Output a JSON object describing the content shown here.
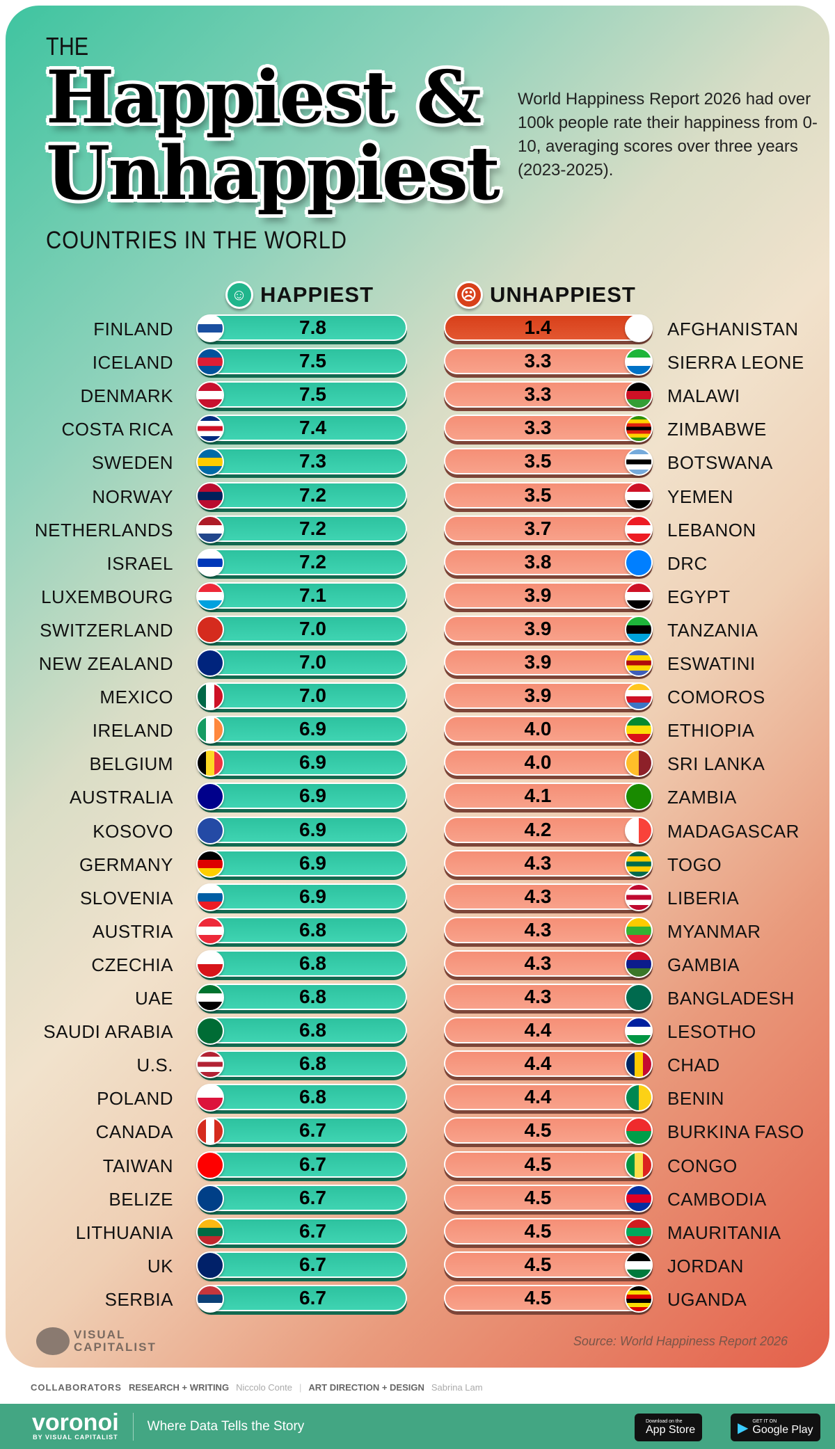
{
  "title": {
    "pre": "THE",
    "line1": "Happiest &",
    "line2": "Unhappiest",
    "subtitle": "COUNTRIES IN THE WORLD"
  },
  "description": "World Happiness Report 2026 had over 100k people rate their happiness from 0-10, averaging scores over three years (2023-2025).",
  "colors": {
    "happy": "#2ec4a0",
    "unhappy": "#f5937a",
    "unhappy_top": "#d8401a"
  },
  "chart_data": {
    "type": "table",
    "columns": [
      {
        "label": "HAPPIEST",
        "icon": "smiley-face-icon"
      },
      {
        "label": "UNHAPPIEST",
        "icon": "frown-face-icon"
      }
    ],
    "happiest": [
      {
        "country": "FINLAND",
        "score": "7.8",
        "flag": [
          "#ffffff",
          "#1a4fa0",
          "#ffffff"
        ],
        "dir": "h"
      },
      {
        "country": "ICELAND",
        "score": "7.5",
        "flag": [
          "#02529c",
          "#dc1e35",
          "#02529c"
        ],
        "dir": "h"
      },
      {
        "country": "DENMARK",
        "score": "7.5",
        "flag": [
          "#c8102e",
          "#ffffff",
          "#c8102e"
        ],
        "dir": "h"
      },
      {
        "country": "COSTA RICA",
        "score": "7.4",
        "flag": [
          "#002b7f",
          "#ffffff",
          "#ce1126",
          "#ffffff",
          "#002b7f"
        ],
        "dir": "h"
      },
      {
        "country": "SWEDEN",
        "score": "7.3",
        "flag": [
          "#006aa7",
          "#fecc00",
          "#006aa7"
        ],
        "dir": "h"
      },
      {
        "country": "NORWAY",
        "score": "7.2",
        "flag": [
          "#ba0c2f",
          "#00205b",
          "#ba0c2f"
        ],
        "dir": "h"
      },
      {
        "country": "NETHERLANDS",
        "score": "7.2",
        "flag": [
          "#ae1c28",
          "#ffffff",
          "#21468b"
        ],
        "dir": "h"
      },
      {
        "country": "ISRAEL",
        "score": "7.2",
        "flag": [
          "#ffffff",
          "#0038b8",
          "#ffffff"
        ],
        "dir": "h"
      },
      {
        "country": "LUXEMBOURG",
        "score": "7.1",
        "flag": [
          "#ed2939",
          "#ffffff",
          "#00a1de"
        ],
        "dir": "h"
      },
      {
        "country": "SWITZERLAND",
        "score": "7.0",
        "flag": [
          "#d52b1e"
        ],
        "dir": "h"
      },
      {
        "country": "NEW ZEALAND",
        "score": "7.0",
        "flag": [
          "#00247d"
        ],
        "dir": "h"
      },
      {
        "country": "MEXICO",
        "score": "7.0",
        "flag": [
          "#006847",
          "#ffffff",
          "#ce1126"
        ],
        "dir": "v"
      },
      {
        "country": "IRELAND",
        "score": "6.9",
        "flag": [
          "#169b62",
          "#ffffff",
          "#ff883e"
        ],
        "dir": "v"
      },
      {
        "country": "BELGIUM",
        "score": "6.9",
        "flag": [
          "#000000",
          "#fdda24",
          "#ef3340"
        ],
        "dir": "v"
      },
      {
        "country": "AUSTRALIA",
        "score": "6.9",
        "flag": [
          "#00008b"
        ],
        "dir": "h"
      },
      {
        "country": "KOSOVO",
        "score": "6.9",
        "flag": [
          "#244aa5"
        ],
        "dir": "h"
      },
      {
        "country": "GERMANY",
        "score": "6.9",
        "flag": [
          "#000000",
          "#dd0000",
          "#ffce00"
        ],
        "dir": "h"
      },
      {
        "country": "SLOVENIA",
        "score": "6.9",
        "flag": [
          "#ffffff",
          "#005da4",
          "#ed1c24"
        ],
        "dir": "h"
      },
      {
        "country": "AUSTRIA",
        "score": "6.8",
        "flag": [
          "#ed2939",
          "#ffffff",
          "#ed2939"
        ],
        "dir": "h"
      },
      {
        "country": "CZECHIA",
        "score": "6.8",
        "flag": [
          "#ffffff",
          "#d7141a"
        ],
        "dir": "h"
      },
      {
        "country": "UAE",
        "score": "6.8",
        "flag": [
          "#00732f",
          "#ffffff",
          "#000000"
        ],
        "dir": "h"
      },
      {
        "country": "SAUDI ARABIA",
        "score": "6.8",
        "flag": [
          "#006c35"
        ],
        "dir": "h"
      },
      {
        "country": "U.S.",
        "score": "6.8",
        "flag": [
          "#b22234",
          "#ffffff",
          "#b22234",
          "#ffffff",
          "#b22234"
        ],
        "dir": "h"
      },
      {
        "country": "POLAND",
        "score": "6.8",
        "flag": [
          "#ffffff",
          "#dc143c"
        ],
        "dir": "h"
      },
      {
        "country": "CANADA",
        "score": "6.7",
        "flag": [
          "#d52b1e",
          "#ffffff",
          "#d52b1e"
        ],
        "dir": "v"
      },
      {
        "country": "TAIWAN",
        "score": "6.7",
        "flag": [
          "#fe0000"
        ],
        "dir": "h"
      },
      {
        "country": "BELIZE",
        "score": "6.7",
        "flag": [
          "#003f87"
        ],
        "dir": "h"
      },
      {
        "country": "LITHUANIA",
        "score": "6.7",
        "flag": [
          "#fdb913",
          "#006a44",
          "#c1272d"
        ],
        "dir": "h"
      },
      {
        "country": "UK",
        "score": "6.7",
        "flag": [
          "#012169"
        ],
        "dir": "h"
      },
      {
        "country": "SERBIA",
        "score": "6.7",
        "flag": [
          "#c6363c",
          "#0c4076",
          "#ffffff"
        ],
        "dir": "h"
      }
    ],
    "unhappiest": [
      {
        "country": "AFGHANISTAN",
        "score": "1.4",
        "flag": [
          "#ffffff"
        ],
        "dir": "h"
      },
      {
        "country": "SIERRA LEONE",
        "score": "3.3",
        "flag": [
          "#1eb53a",
          "#ffffff",
          "#0072c6"
        ],
        "dir": "h"
      },
      {
        "country": "MALAWI",
        "score": "3.3",
        "flag": [
          "#000000",
          "#ce1126",
          "#339e35"
        ],
        "dir": "h"
      },
      {
        "country": "ZIMBABWE",
        "score": "3.3",
        "flag": [
          "#319208",
          "#ffd200",
          "#de2010",
          "#000000",
          "#de2010",
          "#ffd200",
          "#319208"
        ],
        "dir": "h"
      },
      {
        "country": "BOTSWANA",
        "score": "3.5",
        "flag": [
          "#75aadb",
          "#ffffff",
          "#000000",
          "#ffffff",
          "#75aadb"
        ],
        "dir": "h"
      },
      {
        "country": "YEMEN",
        "score": "3.5",
        "flag": [
          "#ce1126",
          "#ffffff",
          "#000000"
        ],
        "dir": "h"
      },
      {
        "country": "LEBANON",
        "score": "3.7",
        "flag": [
          "#ed1c24",
          "#ffffff",
          "#ed1c24"
        ],
        "dir": "h"
      },
      {
        "country": "DRC",
        "score": "3.8",
        "flag": [
          "#007fff"
        ],
        "dir": "h"
      },
      {
        "country": "EGYPT",
        "score": "3.9",
        "flag": [
          "#ce1126",
          "#ffffff",
          "#000000"
        ],
        "dir": "h"
      },
      {
        "country": "TANZANIA",
        "score": "3.9",
        "flag": [
          "#1eb53a",
          "#000000",
          "#00a3dd"
        ],
        "dir": "h"
      },
      {
        "country": "ESWATINI",
        "score": "3.9",
        "flag": [
          "#3e5eb9",
          "#ffd900",
          "#b10c0c",
          "#ffd900",
          "#3e5eb9"
        ],
        "dir": "h"
      },
      {
        "country": "COMOROS",
        "score": "3.9",
        "flag": [
          "#ffc61e",
          "#ffffff",
          "#ce1126",
          "#3a75c4"
        ],
        "dir": "h"
      },
      {
        "country": "ETHIOPIA",
        "score": "4.0",
        "flag": [
          "#078930",
          "#fcdd09",
          "#da121a"
        ],
        "dir": "h"
      },
      {
        "country": "SRI LANKA",
        "score": "4.0",
        "flag": [
          "#ffbe29",
          "#8d2029"
        ],
        "dir": "v"
      },
      {
        "country": "ZAMBIA",
        "score": "4.1",
        "flag": [
          "#198a00"
        ],
        "dir": "h"
      },
      {
        "country": "MADAGASCAR",
        "score": "4.2",
        "flag": [
          "#ffffff",
          "#f9423a"
        ],
        "dir": "v"
      },
      {
        "country": "TOGO",
        "score": "4.3",
        "flag": [
          "#006a4e",
          "#ffce00",
          "#006a4e",
          "#ffce00",
          "#006a4e"
        ],
        "dir": "h"
      },
      {
        "country": "LIBERIA",
        "score": "4.3",
        "flag": [
          "#bf0a30",
          "#ffffff",
          "#bf0a30",
          "#ffffff",
          "#bf0a30"
        ],
        "dir": "h"
      },
      {
        "country": "MYANMAR",
        "score": "4.3",
        "flag": [
          "#fecb00",
          "#34b233",
          "#ea2839"
        ],
        "dir": "h"
      },
      {
        "country": "GAMBIA",
        "score": "4.3",
        "flag": [
          "#ce1126",
          "#0c1c8c",
          "#3a7728"
        ],
        "dir": "h"
      },
      {
        "country": "BANGLADESH",
        "score": "4.3",
        "flag": [
          "#006a4e"
        ],
        "dir": "h"
      },
      {
        "country": "LESOTHO",
        "score": "4.4",
        "flag": [
          "#00209f",
          "#ffffff",
          "#009543"
        ],
        "dir": "h"
      },
      {
        "country": "CHAD",
        "score": "4.4",
        "flag": [
          "#002664",
          "#fecb00",
          "#c60c30"
        ],
        "dir": "v"
      },
      {
        "country": "BENIN",
        "score": "4.4",
        "flag": [
          "#008751",
          "#fcd116"
        ],
        "dir": "v"
      },
      {
        "country": "BURKINA FASO",
        "score": "4.5",
        "flag": [
          "#ef2b2d",
          "#009e49"
        ],
        "dir": "h"
      },
      {
        "country": "CONGO",
        "score": "4.5",
        "flag": [
          "#009543",
          "#fbde4a",
          "#dc241f"
        ],
        "dir": "v"
      },
      {
        "country": "CAMBODIA",
        "score": "4.5",
        "flag": [
          "#032ea1",
          "#e00025",
          "#032ea1"
        ],
        "dir": "h"
      },
      {
        "country": "MAURITANIA",
        "score": "4.5",
        "flag": [
          "#d01c1f",
          "#00a95c",
          "#d01c1f"
        ],
        "dir": "h"
      },
      {
        "country": "JORDAN",
        "score": "4.5",
        "flag": [
          "#000000",
          "#ffffff",
          "#007a3d"
        ],
        "dir": "h"
      },
      {
        "country": "UGANDA",
        "score": "4.5",
        "flag": [
          "#000000",
          "#fcdc04",
          "#d90000",
          "#000000",
          "#fcdc04",
          "#d90000"
        ],
        "dir": "h"
      }
    ]
  },
  "source": "Source: World Happiness Report 2026",
  "brand": {
    "logo_text": "VISUAL CAPITALIST"
  },
  "collaborators": {
    "label": "COLLABORATORS",
    "role1": "RESEARCH + WRITING",
    "name1": "Niccolo Conte",
    "role2": "ART DIRECTION + DESIGN",
    "name2": "Sabrina Lam"
  },
  "footer": {
    "logo": "voronoi",
    "logo_sub": "BY VISUAL CAPITALIST",
    "tagline": "Where Data Tells the Story",
    "appstore_small": "Download on the",
    "appstore": "App Store",
    "play_small": "GET IT ON",
    "play": "Google Play"
  }
}
